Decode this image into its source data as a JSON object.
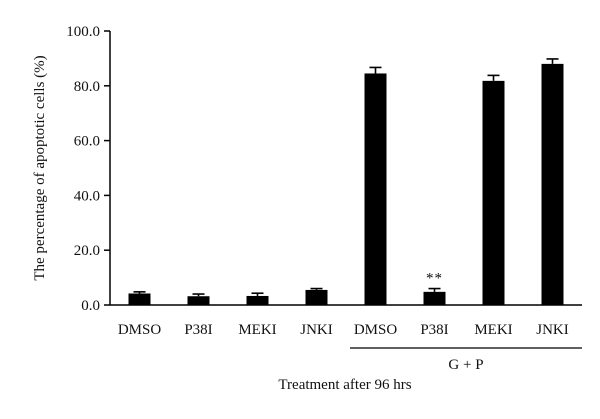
{
  "chart_data": {
    "type": "bar",
    "categories": [
      "DMSO",
      "P38I",
      "MEKI",
      "JNKI",
      "DMSO",
      "P38I",
      "MEKI",
      "JNKI"
    ],
    "values": [
      4.2,
      3.2,
      3.3,
      5.5,
      84.5,
      4.8,
      81.8,
      88.0
    ],
    "errors": [
      0.6,
      0.8,
      1.0,
      0.5,
      2.2,
      1.2,
      2.0,
      1.8
    ],
    "annotations": [
      {
        "category_index": 5,
        "text": "**"
      }
    ],
    "group_label": {
      "text": "G + P",
      "from_index": 4,
      "to_index": 7
    },
    "xlabel": "Treatment after 96 hrs",
    "ylabel": "The percentage of apoptotic cells (%)",
    "ylim": [
      0,
      100
    ],
    "yticks": [
      0,
      20,
      40,
      60,
      80,
      100
    ],
    "ytick_labels": [
      "0.0",
      "20.0",
      "40.0",
      "60.0",
      "80.0",
      "100.0"
    ],
    "bar_color": "#000000",
    "grid": false,
    "legend": "none"
  }
}
